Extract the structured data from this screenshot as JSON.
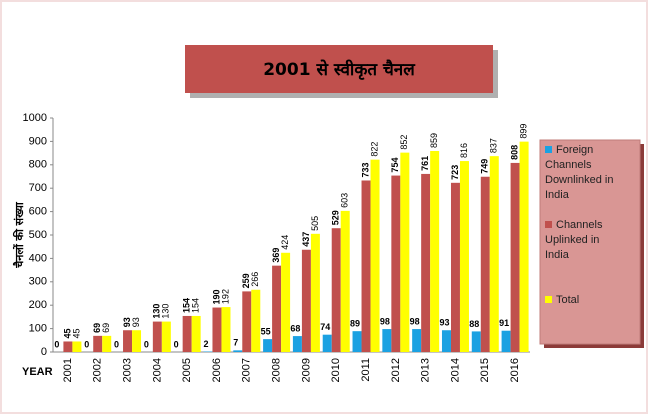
{
  "chart_data": {
    "type": "bar",
    "title": "2001 से स्वीकृत चैनल",
    "y_label": "चैनलों की संख्या",
    "x_label": "YEAR",
    "categories": [
      "2001",
      "2002",
      "2003",
      "2004",
      "2005",
      "2006",
      "2007",
      "2008",
      "2009",
      "2010",
      "2011",
      "2012",
      "2013",
      "2014",
      "2015",
      "2016"
    ],
    "series": [
      {
        "name": "Foreign Channels Downlinked in India",
        "color": "#1ba1e2",
        "values": [
          0,
          0,
          0,
          0,
          0,
          2,
          7,
          55,
          68,
          74,
          89,
          98,
          98,
          93,
          88,
          91
        ]
      },
      {
        "name": "Channels Uplinked in India",
        "color": "#c0504d",
        "values": [
          45,
          69,
          93,
          130,
          154,
          190,
          259,
          369,
          437,
          529,
          733,
          754,
          761,
          723,
          749,
          808
        ]
      },
      {
        "name": "Total",
        "color": "#ffff00",
        "values": [
          45,
          69,
          93,
          130,
          154,
          192,
          266,
          424,
          505,
          603,
          822,
          852,
          859,
          816,
          837,
          899
        ]
      }
    ],
    "ylim": [
      0,
      1000
    ],
    "yticks": [
      0,
      100,
      200,
      300,
      400,
      500,
      600,
      700,
      800,
      900,
      1000
    ],
    "legend": "right"
  }
}
